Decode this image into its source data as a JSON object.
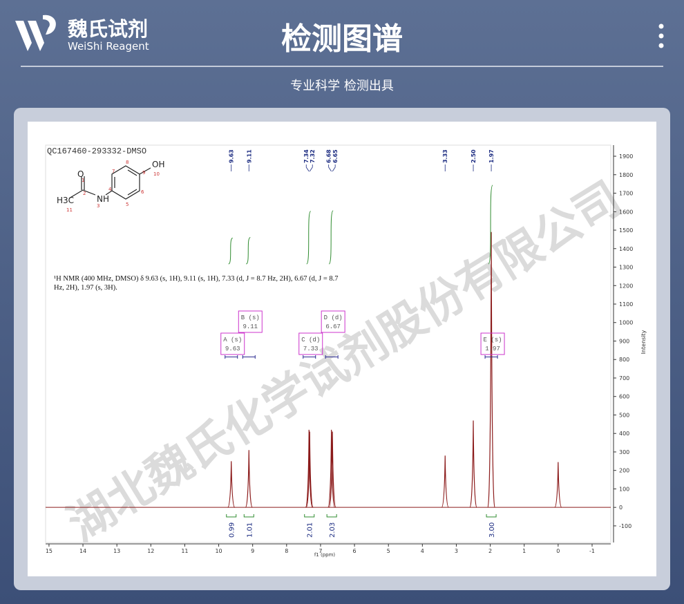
{
  "header": {
    "brand": "魏氏试剂",
    "brand_en": "WeiShi Reagent",
    "title": "检测图谱",
    "subtitle": "专业科学 检测出具"
  },
  "watermark": "湖北魏氏化学试剂股份有限公司",
  "molecule": {
    "atoms": [
      "O",
      "NH",
      "OH",
      "H3C"
    ],
    "numbers": [
      1,
      2,
      3,
      4,
      5,
      6,
      7,
      8,
      9,
      10,
      11
    ]
  },
  "chart_data": {
    "type": "nmr",
    "title": "QC167460-293332-DMSO",
    "annotation": "¹H NMR (400 MHz, DMSO) δ 9.63 (s, 1H), 9.11 (s, 1H), 7.33 (d, J = 8.7 Hz, 2H), 6.67 (d, J = 8.7 Hz, 2H), 1.97 (s, 3H).",
    "x_label": "f1 (ppm)",
    "y_label": "Intensity",
    "xlim": [
      15.1,
      -1.55
    ],
    "xticks": [
      15,
      14,
      13,
      12,
      11,
      10,
      9,
      8,
      7,
      6,
      5,
      4,
      3,
      2,
      1,
      0,
      -1
    ],
    "y2lim": [
      -190,
      1960
    ],
    "y2ticks": [
      -100,
      0,
      100,
      200,
      300,
      400,
      500,
      600,
      700,
      800,
      900,
      1000,
      1100,
      1200,
      1300,
      1400,
      1500,
      1600,
      1700,
      1800,
      1900
    ],
    "color": "#8b1a1a",
    "x": [
      9.63,
      9.11,
      7.34,
      7.32,
      6.68,
      6.65,
      3.33,
      2.5,
      1.97,
      0
    ],
    "values": [
      250,
      310,
      420,
      410,
      420,
      410,
      280,
      470,
      1490,
      245
    ],
    "peak_labels": [
      "9.63",
      "9.11",
      "7.34",
      "7.32",
      "6.68",
      "6.65",
      "3.33",
      "2.50",
      "1.97",
      null
    ],
    "integrals": {
      "x": [
        9.63,
        9.11,
        7.33,
        6.67,
        1.97
      ],
      "values": [
        0.99,
        1.01,
        2.01,
        2.03,
        3
      ],
      "value_labels": [
        "0.99",
        "1.01",
        "2.01",
        "2.03",
        "3.00"
      ],
      "color": "#2e8b2e"
    },
    "multiplets": {
      "names": [
        "A (s)",
        "B (s)",
        "C (d)",
        "D (d)",
        "E (s)"
      ],
      "x": [
        9.63,
        9.11,
        7.33,
        6.67,
        1.97
      ],
      "color": "#cc33cc"
    }
  }
}
